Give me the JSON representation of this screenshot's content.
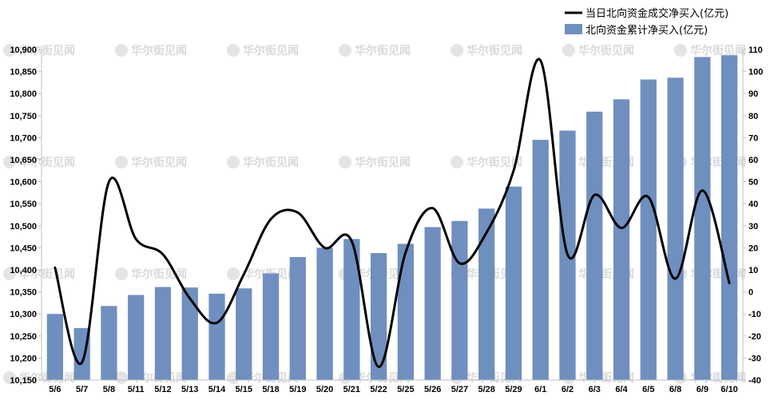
{
  "chart_data": {
    "type": "bar+line",
    "categories": [
      "5/6",
      "5/7",
      "5/8",
      "5/11",
      "5/12",
      "5/13",
      "5/14",
      "5/15",
      "5/18",
      "5/19",
      "5/20",
      "5/21",
      "5/22",
      "5/25",
      "5/26",
      "5/27",
      "5/28",
      "5/29",
      "6/1",
      "6/2",
      "6/3",
      "6/4",
      "6/5",
      "6/8",
      "6/9",
      "6/10"
    ],
    "series": [
      {
        "name": "北向资金累计净买入(亿元)",
        "type": "bar",
        "axis": "left",
        "color": "#6f8fbe",
        "values": [
          10300,
          10268,
          10318,
          10343,
          10361,
          10360,
          10346,
          10358,
          10392,
          10429,
          10450,
          10470,
          10438,
          10459,
          10497,
          10511,
          10539,
          10589,
          10695,
          10716,
          10759,
          10787,
          10832,
          10836,
          10883,
          10887
        ]
      },
      {
        "name": "当日北向资金成交净买入(亿元)",
        "type": "line",
        "axis": "right",
        "color": "#000000",
        "values": [
          11,
          -32,
          50,
          24,
          17,
          -3,
          -14,
          8,
          33,
          36,
          20,
          23,
          -34,
          18,
          38,
          13,
          27,
          55,
          105,
          17,
          44,
          29,
          43,
          6,
          46,
          4
        ]
      }
    ],
    "y_left": {
      "min": 10150,
      "max": 10900,
      "step": 50
    },
    "y_right": {
      "min": -40,
      "max": 110,
      "step": 10
    },
    "legend_position": "top-right",
    "grid": false
  },
  "watermark": "华尔街见闻"
}
